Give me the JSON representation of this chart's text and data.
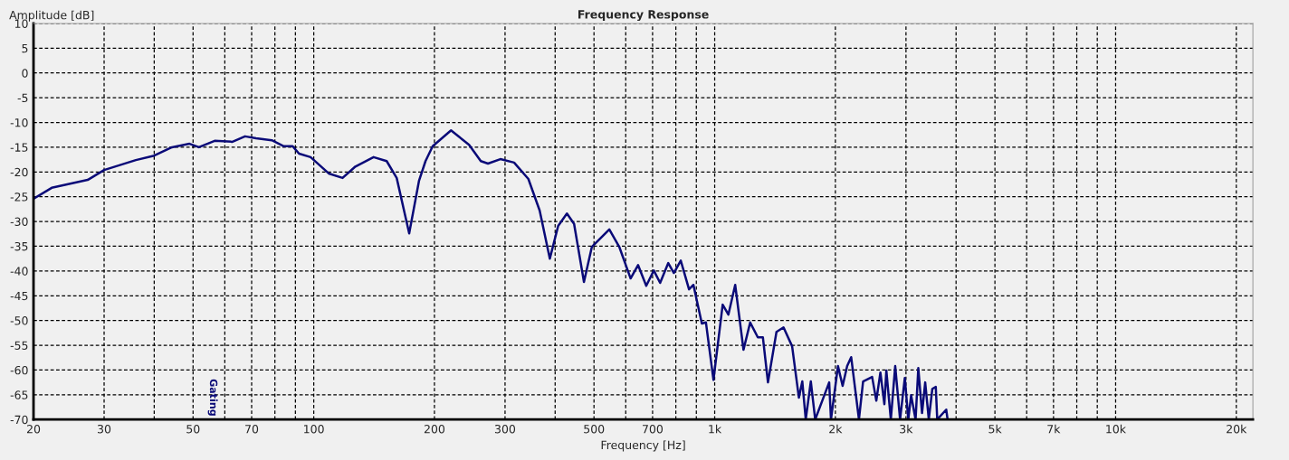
{
  "chart_data": {
    "type": "line",
    "title": "Frequency Response",
    "xlabel": "Frequency [Hz]",
    "ylabel": "Amplitude [dB]",
    "log": "x",
    "grid": true,
    "marker": "none",
    "line_style": "solid",
    "xlim": [
      20,
      22000
    ],
    "ylim": [
      -70,
      10
    ],
    "xticks": [
      20,
      30,
      {
        "value": 40,
        "label": null
      },
      50,
      {
        "value": 60,
        "label": null
      },
      70,
      {
        "value": 80,
        "label": null
      },
      {
        "value": 90,
        "label": null
      },
      100,
      200,
      300,
      {
        "value": 400,
        "label": null
      },
      500,
      {
        "value": 600,
        "label": null
      },
      700,
      {
        "value": 800,
        "label": null
      },
      {
        "value": 900,
        "label": null
      },
      {
        "value": 1000,
        "label": "1k"
      },
      {
        "value": 2000,
        "label": "2k"
      },
      {
        "value": 3000,
        "label": "3k"
      },
      {
        "value": 4000,
        "label": null
      },
      {
        "value": 5000,
        "label": "5k"
      },
      {
        "value": 6000,
        "label": null
      },
      {
        "value": 7000,
        "label": "7k"
      },
      {
        "value": 8000,
        "label": null
      },
      {
        "value": 9000,
        "label": null
      },
      {
        "value": 10000,
        "label": "10k"
      },
      {
        "value": 20000,
        "label": "20k"
      }
    ],
    "yticks": [
      10,
      5,
      0,
      -5,
      -10,
      -15,
      -20,
      -25,
      -30,
      -35,
      -40,
      -45,
      -50,
      -55,
      -60,
      -65,
      -70
    ],
    "annotations": [
      "Gating"
    ],
    "series": [
      {
        "color": "#0a0a78",
        "x": [
          20,
          22.2,
          27.3,
          30,
          36,
          40,
          44.3,
          49,
          51.7,
          56.6,
          62.7,
          67.4,
          71.8,
          78.6,
          84.2,
          88.6,
          91.9,
          98.2,
          109,
          118,
          127,
          141,
          152,
          161,
          173,
          183,
          190,
          198,
          220,
          244,
          261,
          272,
          292,
          316,
          343,
          366,
          388,
          407,
          428,
          446,
          472,
          494,
          546,
          578,
          617,
          644,
          675,
          705,
          731,
          766,
          791,
          823,
          863,
          885,
          929,
          951,
          993,
          1047,
          1082,
          1125,
          1180,
          1226,
          1281,
          1319,
          1358,
          1426,
          1485,
          1560,
          1622,
          1654,
          1687,
          1737,
          1781,
          1855,
          1930,
          1950,
          2030,
          2085,
          2140,
          2190,
          2290,
          2345,
          2470,
          2530,
          2590,
          2650,
          2680,
          2750,
          2820,
          2900,
          2980,
          3040,
          3090,
          3170,
          3220,
          3290,
          3350,
          3420,
          3490,
          3560,
          3590,
          3780,
          3810
        ],
        "values": [
          -25.4,
          -23.2,
          -21.6,
          -19.6,
          -17.6,
          -16.7,
          -15.0,
          -14.3,
          -15.0,
          -13.7,
          -13.9,
          -12.8,
          -13.2,
          -13.6,
          -14.8,
          -14.8,
          -16.3,
          -17.0,
          -20.3,
          -21.2,
          -18.9,
          -17.0,
          -17.8,
          -21.2,
          -32.4,
          -21.8,
          -17.8,
          -14.8,
          -11.6,
          -14.5,
          -17.8,
          -18.3,
          -17.4,
          -18.1,
          -21.4,
          -27.8,
          -37.5,
          -30.9,
          -28.4,
          -30.5,
          -42.2,
          -35.1,
          -31.6,
          -35.1,
          -41.5,
          -38.8,
          -43.0,
          -39.9,
          -42.4,
          -38.4,
          -40.4,
          -37.9,
          -43.7,
          -42.8,
          -50.6,
          -50.4,
          -62.0,
          -46.8,
          -48.8,
          -42.8,
          -55.9,
          -50.4,
          -53.4,
          -53.4,
          -62.5,
          -52.3,
          -51.4,
          -55.2,
          -65.6,
          -62.3,
          -70,
          -62.3,
          -70,
          -66.2,
          -62.5,
          -70,
          -59.2,
          -63.2,
          -59.2,
          -57.4,
          -70,
          -62.3,
          -61.4,
          -66.2,
          -60.5,
          -66.9,
          -60.1,
          -70,
          -59.2,
          -70,
          -61.6,
          -70,
          -65.1,
          -70,
          -59.6,
          -68.7,
          -62.5,
          -70,
          -63.8,
          -63.4,
          -70,
          -68.0,
          -70
        ]
      }
    ]
  }
}
